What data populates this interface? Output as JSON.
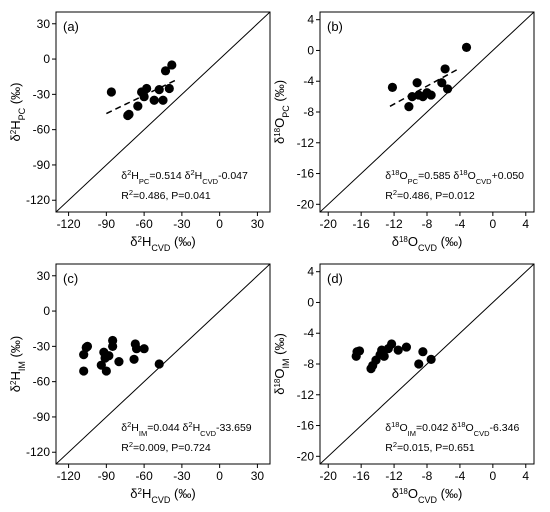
{
  "chart_data": [
    {
      "type": "scatter",
      "panel": "(a)",
      "xlabel": {
        "base": "δ",
        "sup": "2",
        "main": "H",
        "sub": "CVD",
        "unit": " (‰)"
      },
      "ylabel": {
        "base": "δ",
        "sup": "2",
        "main": "H",
        "sub": "PC",
        "unit": " (‰)"
      },
      "xlim": [
        -130,
        40
      ],
      "ylim": [
        -130,
        40
      ],
      "xticks": [
        "-120",
        "-90",
        "-60",
        "-30",
        "0",
        "30"
      ],
      "yticks": [
        "-120",
        "-90",
        "-60",
        "-30",
        "0",
        "30"
      ],
      "xtick_values": [
        -120,
        -90,
        -60,
        -30,
        0,
        30
      ],
      "ytick_values": [
        -120,
        -90,
        -60,
        -30,
        0,
        30
      ],
      "x": [
        -86,
        -73,
        -72,
        -65,
        -62,
        -60,
        -58,
        -52,
        -48,
        -45,
        -43,
        -40,
        -38
      ],
      "y": [
        -28,
        -48,
        -47,
        -40,
        -28,
        -32,
        -25,
        -35,
        -26,
        -35,
        -10,
        -25,
        -5
      ],
      "fit": {
        "x": [
          -90,
          -35
        ],
        "y": [
          -46.3,
          -18.0
        ]
      },
      "annotation": [
        [
          {
            "t": "δ"
          },
          {
            "t": "2",
            "s": "sup"
          },
          {
            "t": "H"
          },
          {
            "t": "PC",
            "s": "sub"
          },
          {
            "t": "=0.514 δ"
          },
          {
            "t": "2",
            "s": "sup"
          },
          {
            "t": "H"
          },
          {
            "t": "CVD",
            "s": "sub"
          },
          {
            "t": "-0.047"
          }
        ],
        [
          {
            "t": "R"
          },
          {
            "t": "2",
            "s": "sup"
          },
          {
            "t": "=0.486, P=0.041"
          }
        ]
      ]
    },
    {
      "type": "scatter",
      "panel": "(b)",
      "xlabel": {
        "base": "δ",
        "sup": "18",
        "main": "O",
        "sub": "CVD",
        "unit": " (‰)"
      },
      "ylabel": {
        "base": "δ",
        "sup": "18",
        "main": "O",
        "sub": "PC",
        "unit": " (‰)"
      },
      "xlim": [
        -21,
        5
      ],
      "ylim": [
        -21,
        5
      ],
      "xticks": [
        "-20",
        "-16",
        "-12",
        "-8",
        "-4",
        "0",
        "4"
      ],
      "yticks": [
        "-20",
        "-16",
        "-12",
        "-8",
        "-4",
        "0",
        "4"
      ],
      "xtick_values": [
        -20,
        -16,
        -12,
        -8,
        -4,
        0,
        4
      ],
      "ytick_values": [
        -20,
        -16,
        -12,
        -8,
        -4,
        0,
        4
      ],
      "x": [
        -12.2,
        -10.2,
        -9.8,
        -9.2,
        -9.0,
        -8.5,
        -8.0,
        -7.5,
        -6.2,
        -5.8,
        -5.5,
        -3.2
      ],
      "y": [
        -4.8,
        -7.3,
        -6.0,
        -4.2,
        -5.8,
        -6.0,
        -5.5,
        -5.8,
        -4.2,
        -2.4,
        -5.0,
        0.4
      ],
      "fit": {
        "x": [
          -12.5,
          -4
        ],
        "y": [
          -7.26,
          -2.29
        ]
      },
      "annotation": [
        [
          {
            "t": "δ"
          },
          {
            "t": "18",
            "s": "sup"
          },
          {
            "t": "O"
          },
          {
            "t": "PC",
            "s": "sub"
          },
          {
            "t": "=0.585 δ"
          },
          {
            "t": "18",
            "s": "sup"
          },
          {
            "t": "O"
          },
          {
            "t": "CVD",
            "s": "sub"
          },
          {
            "t": "+0.050"
          }
        ],
        [
          {
            "t": "R"
          },
          {
            "t": "2",
            "s": "sup"
          },
          {
            "t": "=0.486, P=0.012"
          }
        ]
      ]
    },
    {
      "type": "scatter",
      "panel": "(c)",
      "xlabel": {
        "base": "δ",
        "sup": "2",
        "main": "H",
        "sub": "CVD",
        "unit": " (‰)"
      },
      "ylabel": {
        "base": "δ",
        "sup": "2",
        "main": "H",
        "sub": "IM",
        "unit": " (‰)"
      },
      "xlim": [
        -130,
        40
      ],
      "ylim": [
        -130,
        40
      ],
      "xticks": [
        "-120",
        "-90",
        "-60",
        "-30",
        "0",
        "30"
      ],
      "yticks": [
        "-120",
        "-90",
        "-60",
        "-30",
        "0",
        "30"
      ],
      "xtick_values": [
        -120,
        -90,
        -60,
        -30,
        0,
        30
      ],
      "ytick_values": [
        -120,
        -90,
        -60,
        -30,
        0,
        30
      ],
      "x": [
        -108,
        -108,
        -106,
        -105,
        -94,
        -92,
        -91,
        -90,
        -88,
        -85,
        -85,
        -80,
        -68,
        -67,
        -66,
        -60,
        -48
      ],
      "y": [
        -51,
        -37,
        -31,
        -30,
        -46,
        -35,
        -40,
        -51,
        -38,
        -25,
        -30,
        -43,
        -41,
        -28,
        -32,
        -32,
        -45
      ],
      "fit": null,
      "annotation": [
        [
          {
            "t": "δ"
          },
          {
            "t": "2",
            "s": "sup"
          },
          {
            "t": "H"
          },
          {
            "t": "IM",
            "s": "sub"
          },
          {
            "t": "=0.044 δ"
          },
          {
            "t": "2",
            "s": "sup"
          },
          {
            "t": "H"
          },
          {
            "t": "CVD",
            "s": "sub"
          },
          {
            "t": "-33.659"
          }
        ],
        [
          {
            "t": "R"
          },
          {
            "t": "2",
            "s": "sup"
          },
          {
            "t": "=0.009, P=0.724"
          }
        ]
      ]
    },
    {
      "type": "scatter",
      "panel": "(d)",
      "xlabel": {
        "base": "δ",
        "sup": "18",
        "main": "O",
        "sub": "CVD",
        "unit": " (‰)"
      },
      "ylabel": {
        "base": "δ",
        "sup": "18",
        "main": "O",
        "sub": "IM",
        "unit": " (‰)"
      },
      "xlim": [
        -21,
        5
      ],
      "ylim": [
        -21,
        5
      ],
      "xticks": [
        "-20",
        "-16",
        "-12",
        "-8",
        "-4",
        "0",
        "4"
      ],
      "yticks": [
        "-20",
        "-16",
        "-12",
        "-8",
        "-4",
        "0",
        "4"
      ],
      "xtick_values": [
        -20,
        -16,
        -12,
        -8,
        -4,
        0,
        4
      ],
      "ytick_values": [
        -20,
        -16,
        -12,
        -8,
        -4,
        0,
        4
      ],
      "x": [
        -16.6,
        -16.5,
        -16.2,
        -14.8,
        -14.6,
        -14.2,
        -13.7,
        -13.5,
        -13.2,
        -12.7,
        -12.3,
        -11.5,
        -10.5,
        -9.0,
        -8.5,
        -7.5
      ],
      "y": [
        -7.0,
        -6.4,
        -6.3,
        -8.6,
        -8.2,
        -7.5,
        -6.8,
        -6.2,
        -7.0,
        -6.0,
        -5.4,
        -6.2,
        -5.8,
        -8.0,
        -6.4,
        -7.4
      ],
      "fit": null,
      "annotation": [
        [
          {
            "t": "δ"
          },
          {
            "t": "18",
            "s": "sup"
          },
          {
            "t": "O"
          },
          {
            "t": "IM",
            "s": "sub"
          },
          {
            "t": "=0.042 δ"
          },
          {
            "t": "18",
            "s": "sup"
          },
          {
            "t": "O"
          },
          {
            "t": "CVD",
            "s": "sub"
          },
          {
            "t": "-6.346"
          }
        ],
        [
          {
            "t": "R"
          },
          {
            "t": "2",
            "s": "sup"
          },
          {
            "t": "=0.015, P=0.651"
          }
        ]
      ]
    }
  ]
}
